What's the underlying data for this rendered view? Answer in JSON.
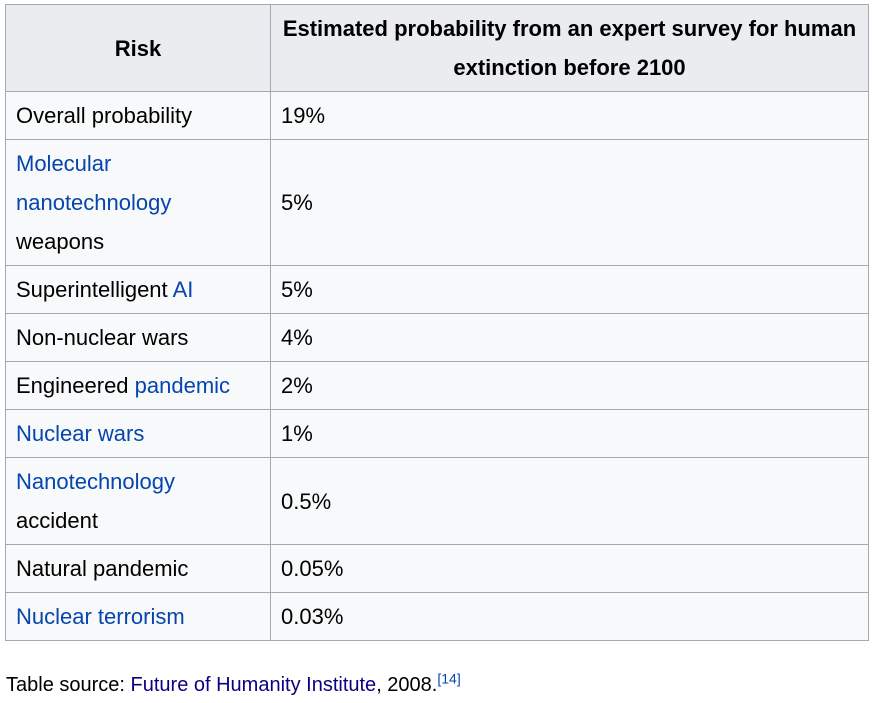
{
  "table": {
    "headers": {
      "risk": "Risk",
      "probability": "Estimated probability from an expert survey for human extinction before 2100"
    },
    "rows": [
      {
        "risk_parts": [
          {
            "text": "Overall probability",
            "link": false
          }
        ],
        "probability": "19%"
      },
      {
        "risk_parts": [
          {
            "text": "Molecular nanotechnology",
            "link": true
          },
          {
            "text": " weapons",
            "link": false
          }
        ],
        "probability": "5%"
      },
      {
        "risk_parts": [
          {
            "text": "Superintelligent ",
            "link": false
          },
          {
            "text": "AI",
            "link": true
          }
        ],
        "probability": "5%"
      },
      {
        "risk_parts": [
          {
            "text": "Non-nuclear wars",
            "link": false
          }
        ],
        "probability": "4%"
      },
      {
        "risk_parts": [
          {
            "text": "Engineered ",
            "link": false
          },
          {
            "text": "pandemic",
            "link": true
          }
        ],
        "probability": "2%"
      },
      {
        "risk_parts": [
          {
            "text": "Nuclear wars",
            "link": true
          }
        ],
        "probability": "1%"
      },
      {
        "risk_parts": [
          {
            "text": "Nanotechnology",
            "link": true
          },
          {
            "text": " accident",
            "link": false
          }
        ],
        "probability": "0.5%"
      },
      {
        "risk_parts": [
          {
            "text": "Natural pandemic",
            "link": false
          }
        ],
        "probability": "0.05%"
      },
      {
        "risk_parts": [
          {
            "text": "Nuclear terrorism",
            "link": true
          }
        ],
        "probability": "0.03%"
      }
    ]
  },
  "caption": {
    "prefix": "Table source: ",
    "source_link": "Future of Humanity Institute",
    "suffix": ", 2008.",
    "citation": "[14]"
  },
  "colors": {
    "link": "#0645ad",
    "visited_link": "#0b0080",
    "border": "#a2a9b1",
    "header_bg": "#eaecf0",
    "cell_bg": "#f8f9fa"
  }
}
